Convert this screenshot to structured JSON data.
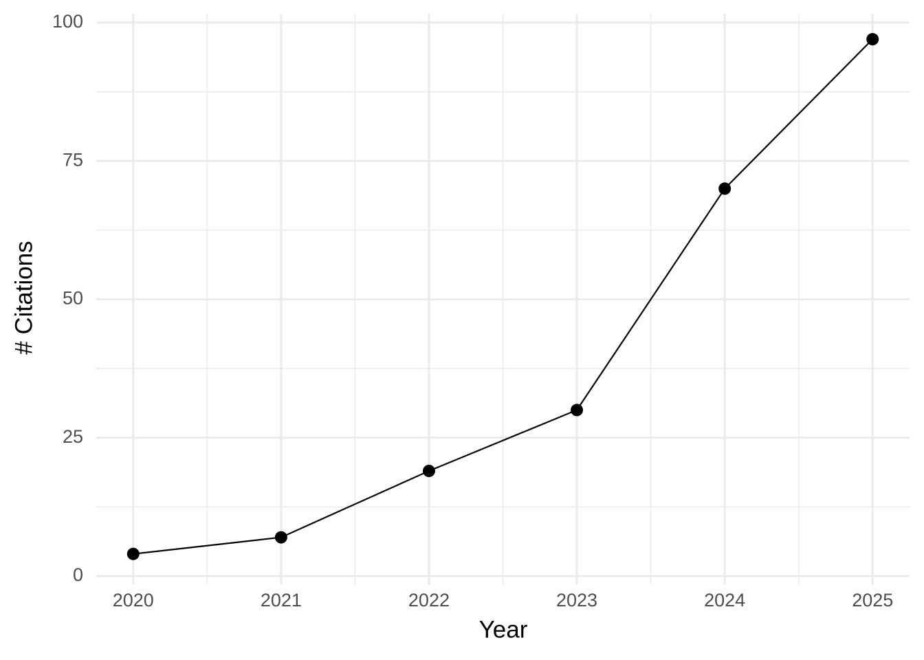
{
  "chart_data": {
    "type": "line",
    "x_label": "Year",
    "y_label": "# Citations",
    "x": [
      2020,
      2021,
      2022,
      2023,
      2024,
      2025
    ],
    "series": [
      {
        "color": "#000000",
        "values": [
          4,
          7,
          19,
          30,
          70,
          97
        ]
      }
    ],
    "xlim": [
      2019.75,
      2025.25
    ],
    "xticks": [
      2020,
      2021,
      2022,
      2023,
      2024,
      2025
    ],
    "xminor": [
      2020.5,
      2021.5,
      2022.5,
      2023.5,
      2024.5
    ],
    "ylim": [
      -1.5,
      101.6
    ],
    "yticks": [
      0,
      25,
      50,
      75,
      100
    ],
    "yminor": [
      12.5,
      37.5,
      62.5,
      87.5
    ],
    "grid": true
  }
}
